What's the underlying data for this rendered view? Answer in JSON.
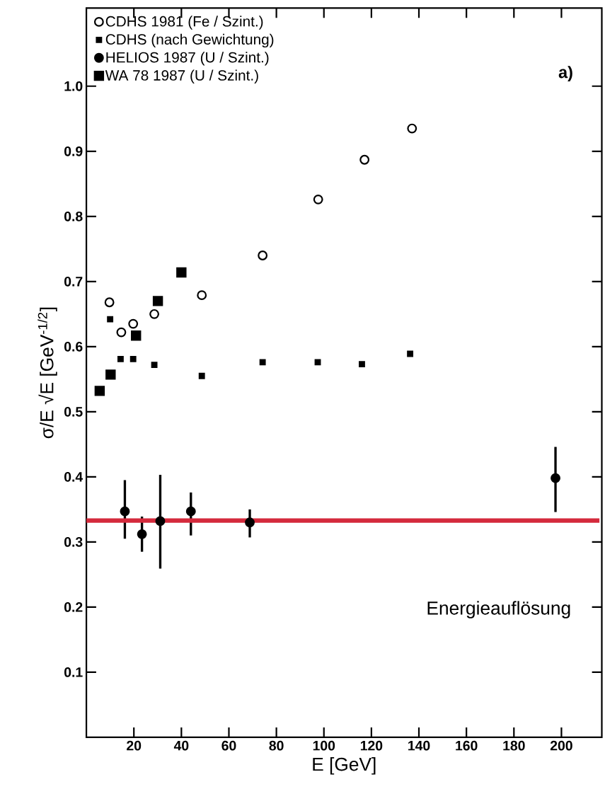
{
  "chart_data": {
    "type": "scatter",
    "xlabel": "E [GeV]",
    "ylabel": "σ/E √E [GeV$^{-1/2}$]",
    "annotations": [
      "a)",
      "Energieauflösung"
    ],
    "xlim": [
      0,
      217
    ],
    "ylim": [
      0,
      1.12
    ],
    "xticks": [
      20,
      40,
      60,
      80,
      100,
      120,
      140,
      160,
      180,
      200
    ],
    "yticks": [
      0.1,
      0.2,
      0.3,
      0.4,
      0.5,
      0.6,
      0.7,
      0.8,
      0.9,
      {
        "value": 1.0,
        "label": "1.0"
      }
    ],
    "grid": false,
    "legend": "top left",
    "series": [
      {
        "name": "CDHS 1981 (Fe / Szint.)",
        "color": "#000000",
        "marker": "circle",
        "x": [
          9.7,
          14.7,
          19.7,
          28.6,
          48.6,
          74.2,
          97.6,
          117.1,
          137.1
        ],
        "values": [
          0.668,
          0.622,
          0.635,
          0.65,
          0.679,
          0.74,
          0.826,
          0.887,
          0.935
        ]
      },
      {
        "name": "CDHS (nach Gewichtung)",
        "color": "#000000",
        "marker": "square",
        "x": [
          10.0,
          14.4,
          19.7,
          28.6,
          48.6,
          74.2,
          97.4,
          116,
          136.3
        ],
        "values": [
          0.642,
          0.581,
          0.581,
          0.572,
          0.555,
          0.576,
          0.576,
          0.573,
          0.589
        ]
      },
      {
        "name": "HELIOS 1987 (U / Szint.)",
        "color": "#000000",
        "marker": "circle",
        "x": [
          16.2,
          23.4,
          31.1,
          44,
          68.8,
          197.5
        ],
        "values": [
          0.347,
          0.312,
          0.332,
          0.347,
          0.33,
          0.398
        ],
        "errors": [
          [
            0.305,
            0.395
          ],
          [
            0.285,
            0.339
          ],
          [
            0.259,
            0.403
          ],
          [
            0.31,
            0.376
          ],
          [
            0.307,
            0.35
          ],
          [
            0.346,
            0.446
          ]
        ]
      },
      {
        "name": "WA 78 1987 (U / Szint.)",
        "color": "#000000",
        "marker": "square",
        "x": [
          5.6,
          10.2,
          20.9,
          30.1,
          40
        ],
        "values": [
          0.532,
          0.557,
          0.617,
          0.67,
          0.714
        ]
      }
    ],
    "ref_lines": [
      {
        "axis": "y",
        "value": 0.333,
        "color": "#d42a3c"
      }
    ]
  }
}
